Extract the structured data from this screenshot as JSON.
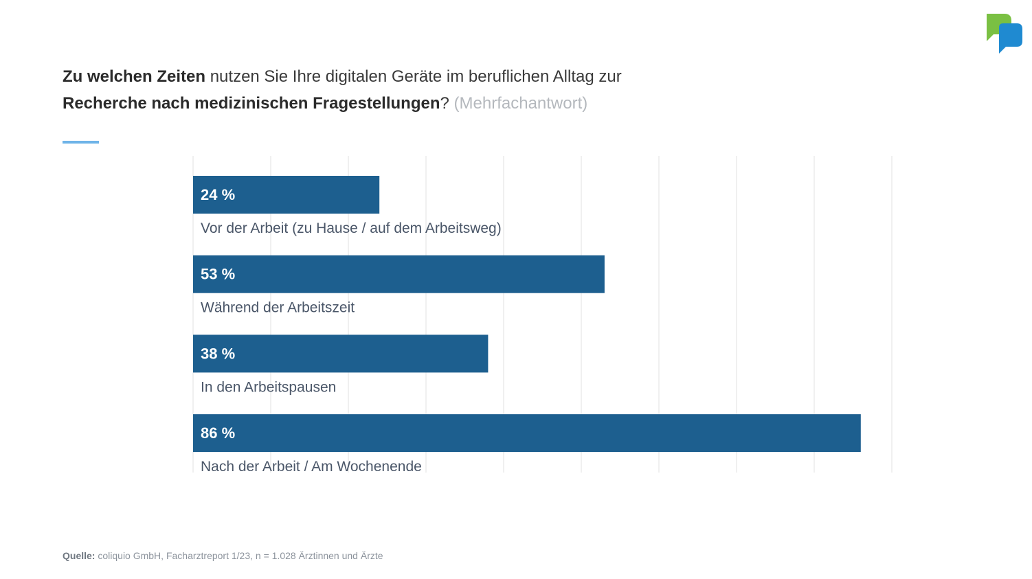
{
  "title": {
    "part1_bold": "Zu welchen Zeiten",
    "part1_rest": " nutzen Sie Ihre digitalen Geräte im beruflichen Alltag zur",
    "part2_bold": "Recherche nach medizinischen Fragestellungen",
    "part2_q": "?",
    "part2_muted": " (Mehrfachantwort)"
  },
  "colors": {
    "bar": "#1d5f8f",
    "accent_line": "#6fb4e8",
    "logo_green": "#7ac043",
    "logo_blue": "#1f8ad1"
  },
  "logo": {
    "icon": "speech-bubble-logo-icon"
  },
  "chart_data": {
    "type": "bar",
    "orientation": "horizontal",
    "categories": [
      "Vor der Arbeit (zu Hause / auf dem Arbeitsweg)",
      "Während der Arbeitszeit",
      "In den Arbeitspausen",
      "Nach der Arbeit / Am Wochenende"
    ],
    "values": [
      24,
      53,
      38,
      86
    ],
    "value_labels": [
      "24 %",
      "53 %",
      "38 %",
      "86 %"
    ],
    "unit": "%",
    "xlim": [
      0,
      90
    ],
    "grid": true,
    "legend": "none"
  },
  "source": {
    "label": "Quelle:",
    "text": " coliquio GmbH, Facharztreport 1/23, n = 1.028 Ärztinnen und Ärzte"
  }
}
